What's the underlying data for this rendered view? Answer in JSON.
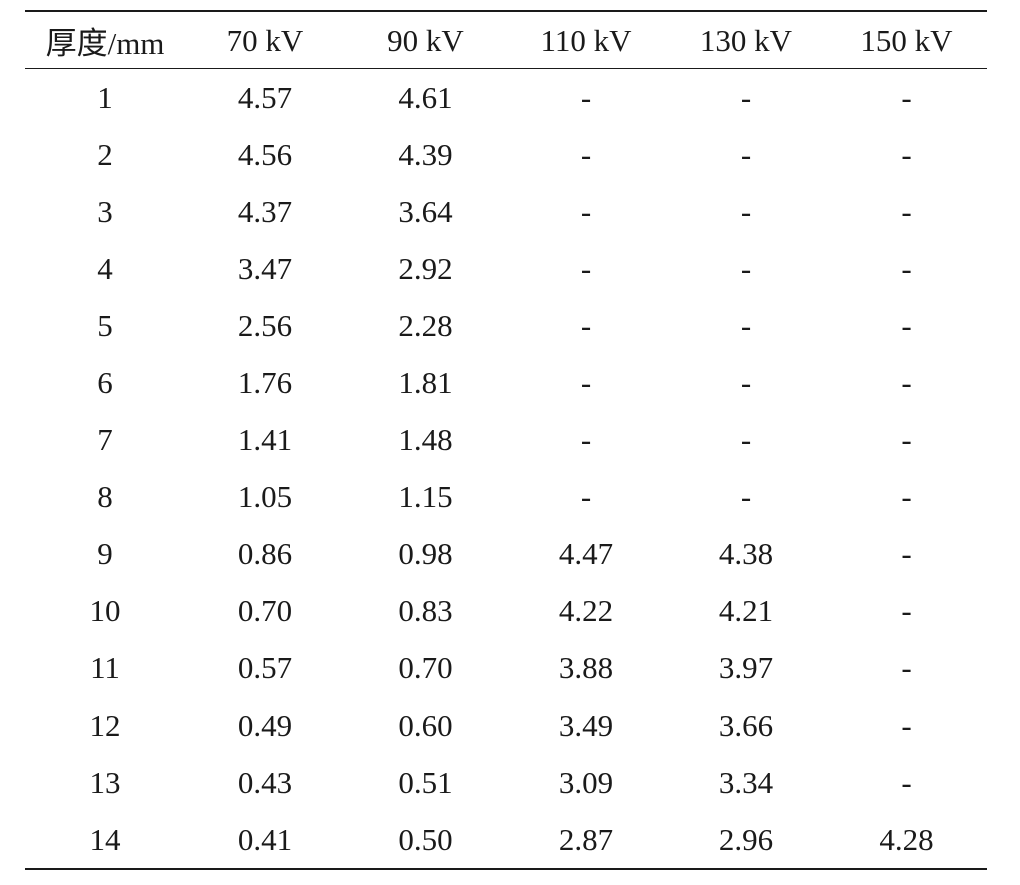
{
  "table": {
    "headers": [
      "厚度/mm",
      "70 kV",
      "90 kV",
      "110 kV",
      "130 kV",
      "150 kV"
    ],
    "rows": [
      [
        "1",
        "4.57",
        "4.61",
        "-",
        "-",
        "-"
      ],
      [
        "2",
        "4.56",
        "4.39",
        "-",
        "-",
        "-"
      ],
      [
        "3",
        "4.37",
        "3.64",
        "-",
        "-",
        "-"
      ],
      [
        "4",
        "3.47",
        "2.92",
        "-",
        "-",
        "-"
      ],
      [
        "5",
        "2.56",
        "2.28",
        "-",
        "-",
        "-"
      ],
      [
        "6",
        "1.76",
        "1.81",
        "-",
        "-",
        "-"
      ],
      [
        "7",
        "1.41",
        "1.48",
        "-",
        "-",
        "-"
      ],
      [
        "8",
        "1.05",
        "1.15",
        "-",
        "-",
        "-"
      ],
      [
        "9",
        "0.86",
        "0.98",
        "4.47",
        "4.38",
        "-"
      ],
      [
        "10",
        "0.70",
        "0.83",
        "4.22",
        "4.21",
        "-"
      ],
      [
        "11",
        "0.57",
        "0.70",
        "3.88",
        "3.97",
        "-"
      ],
      [
        "12",
        "0.49",
        "0.60",
        "3.49",
        "3.66",
        "-"
      ],
      [
        "13",
        "0.43",
        "0.51",
        "3.09",
        "3.34",
        "-"
      ],
      [
        "14",
        "0.41",
        "0.50",
        "2.87",
        "2.96",
        "4.28"
      ]
    ]
  }
}
